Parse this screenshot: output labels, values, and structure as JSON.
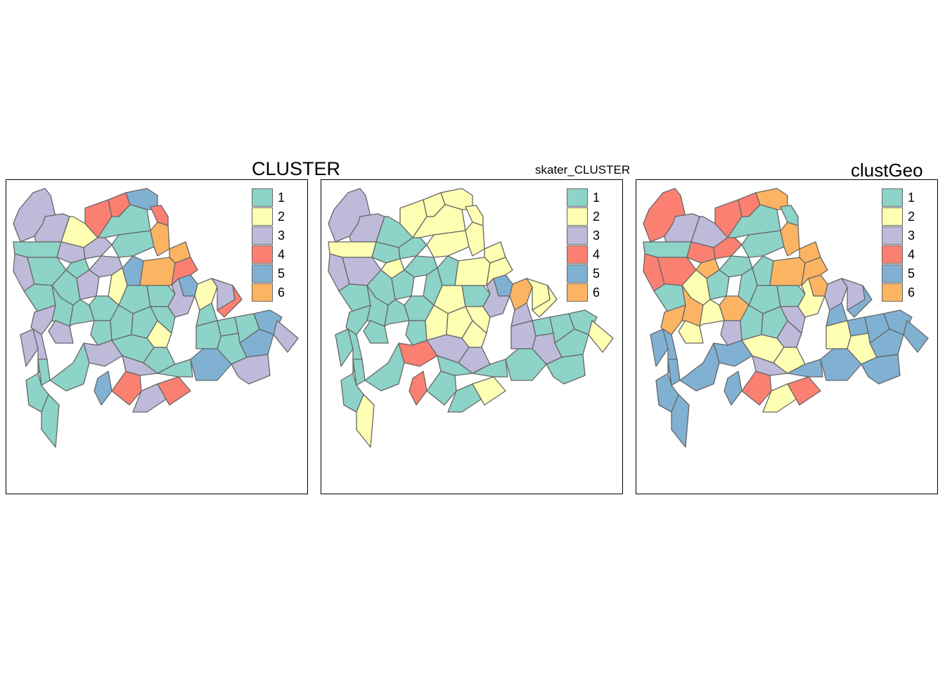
{
  "palette": [
    "#8dd3c7",
    "#ffffb3",
    "#bebada",
    "#fb8072",
    "#80b1d3",
    "#fdb462"
  ],
  "border_color": "#666666",
  "legend_labels": [
    "1",
    "2",
    "3",
    "4",
    "5",
    "6"
  ],
  "panels": [
    {
      "title": "CLUSTER",
      "assignments": [
        3,
        3,
        2,
        4,
        4,
        5,
        4,
        1,
        1,
        3,
        3,
        1,
        1,
        6,
        6,
        5,
        3,
        1,
        1,
        3,
        3,
        2,
        1,
        1,
        5,
        1,
        1,
        1,
        3,
        3,
        1,
        1,
        1,
        1,
        1,
        2,
        6,
        4,
        3,
        2,
        1,
        1,
        1,
        5,
        5,
        3,
        4,
        3,
        1,
        1,
        3,
        3,
        1,
        1,
        3,
        5,
        4,
        3,
        4,
        1,
        1,
        1,
        5,
        3,
        3,
        1,
        1
      ]
    },
    {
      "title": "skater_CLUSTER",
      "assignments": [
        3,
        3,
        1,
        2,
        2,
        2,
        2,
        2,
        2,
        1,
        1,
        2,
        2,
        2,
        2,
        5,
        3,
        3,
        1,
        1,
        1,
        1,
        2,
        1,
        1,
        1,
        1,
        1,
        1,
        1,
        1,
        1,
        2,
        2,
        2,
        2,
        2,
        2,
        3,
        6,
        3,
        1,
        1,
        1,
        1,
        2,
        2,
        2,
        3,
        3,
        1,
        1,
        1,
        1,
        4,
        4,
        1,
        1,
        2,
        3,
        3,
        1,
        1,
        1,
        1,
        1,
        2
      ]
    },
    {
      "title": "clustGeo",
      "assignments": [
        4,
        3,
        3,
        4,
        4,
        6,
        1,
        1,
        1,
        4,
        4,
        1,
        6,
        6,
        6,
        6,
        4,
        4,
        2,
        1,
        1,
        1,
        1,
        1,
        1,
        1,
        6,
        6,
        6,
        2,
        2,
        3,
        1,
        1,
        3,
        3,
        6,
        6,
        2,
        3,
        5,
        5,
        5,
        5,
        5,
        3,
        5,
        5,
        2,
        2,
        5,
        5,
        5,
        5,
        5,
        5,
        4,
        2,
        4,
        2,
        2,
        5,
        5,
        5,
        3,
        5,
        5
      ]
    }
  ]
}
